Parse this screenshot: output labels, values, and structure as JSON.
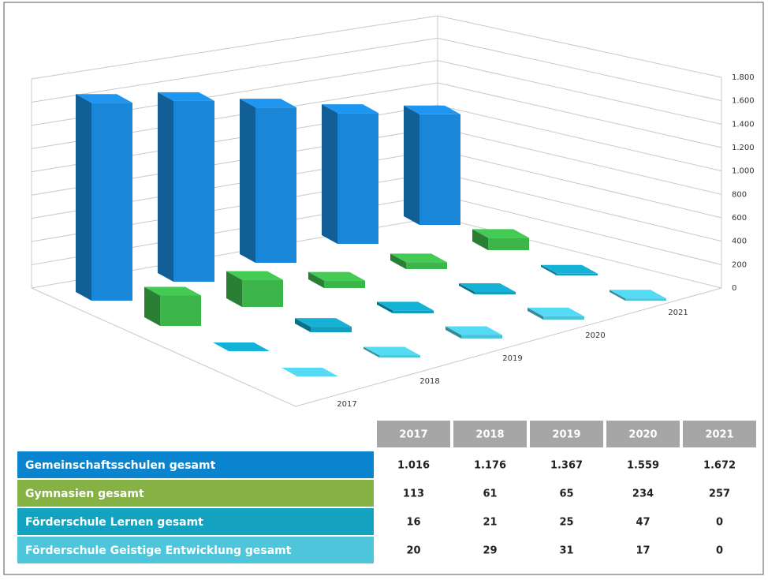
{
  "chart_data": {
    "type": "bar3d",
    "categories": [
      "2017",
      "2018",
      "2019",
      "2020",
      "2021"
    ],
    "series": [
      {
        "name": "Gemeinschaftsschulen gesamt",
        "color": "#1a86d8",
        "values": [
          1016,
          1176,
          1367,
          1559,
          1672
        ],
        "value_labels": [
          "1.016",
          "1.176",
          "1.367",
          "1.559",
          "1.672"
        ]
      },
      {
        "name": "Gymnasien gesamt",
        "color": "#3cb54a",
        "values": [
          113,
          61,
          65,
          234,
          257
        ]
      },
      {
        "name": "Förderschule Lernen gesamt",
        "color": "#129fbf",
        "values": [
          16,
          21,
          25,
          47,
          0
        ]
      },
      {
        "name": "Förderschule Geistige Entwicklung gesamt",
        "color": "#4cc3d9",
        "values": [
          20,
          29,
          31,
          17,
          0
        ]
      }
    ],
    "ylim": [
      0,
      1800
    ],
    "yticks": [
      0,
      200,
      400,
      600,
      800,
      {
        "value": 1000,
        "label": "1.000"
      },
      {
        "value": 1200,
        "label": "1.200"
      },
      {
        "value": 1400,
        "label": "1.400"
      },
      {
        "value": 1600,
        "label": "1.600"
      },
      {
        "value": 1800,
        "label": "1.800"
      }
    ],
    "grid": true
  }
}
